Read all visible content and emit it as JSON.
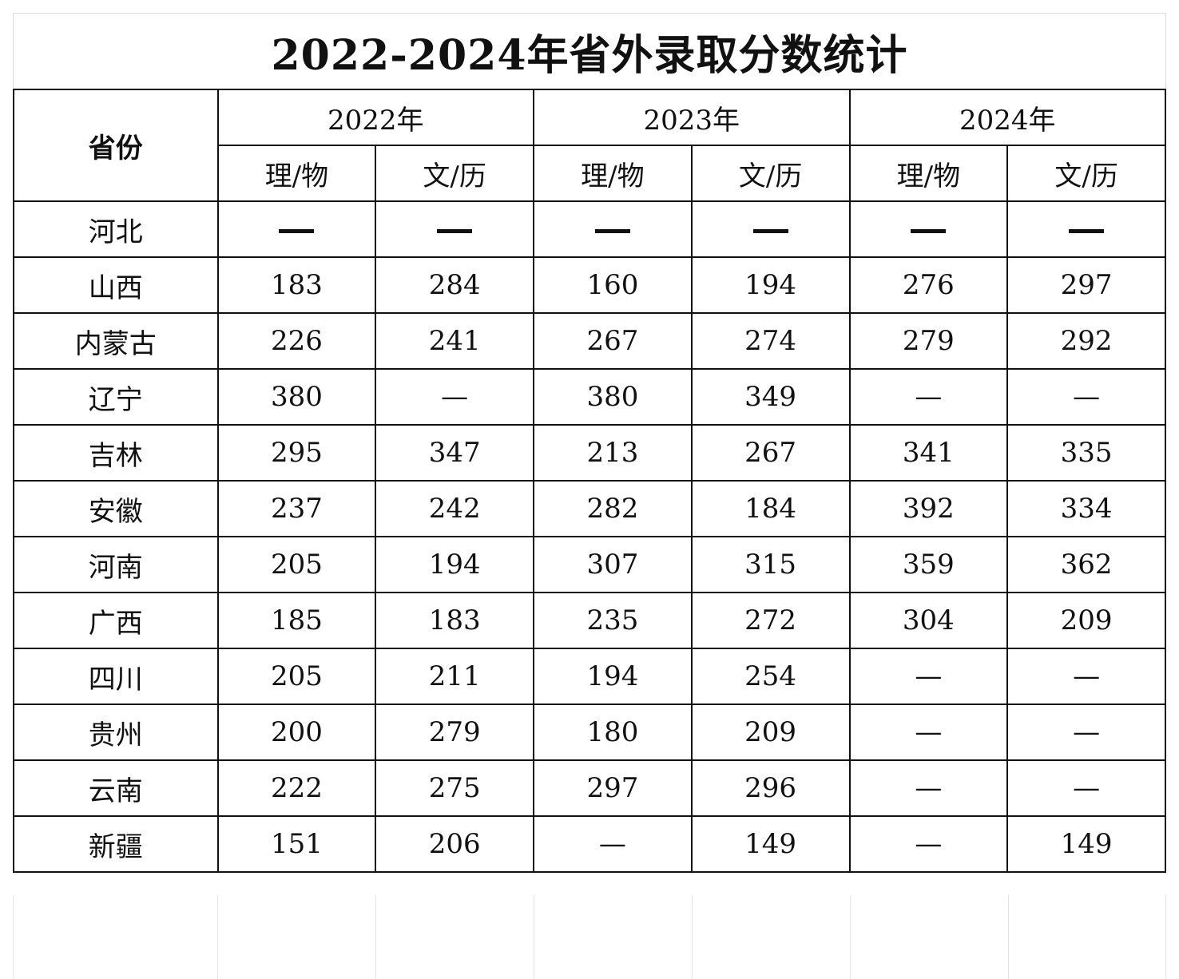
{
  "title": "2022-2024年省外录取分数统计",
  "header": {
    "province_label": "省份",
    "years": [
      "2022年",
      "2023年",
      "2024年"
    ],
    "subcategories": [
      "理/物",
      "文/历"
    ]
  },
  "rows": [
    {
      "province": "河北",
      "values": [
        "—",
        "—",
        "—",
        "—",
        "—",
        "—"
      ],
      "bold_dash": true
    },
    {
      "province": "山西",
      "values": [
        "183",
        "284",
        "160",
        "194",
        "276",
        "297"
      ]
    },
    {
      "province": "内蒙古",
      "values": [
        "226",
        "241",
        "267",
        "274",
        "279",
        "292"
      ]
    },
    {
      "province": "辽宁",
      "values": [
        "380",
        "—",
        "380",
        "349",
        "—",
        "—"
      ]
    },
    {
      "province": "吉林",
      "values": [
        "295",
        "347",
        "213",
        "267",
        "341",
        "335"
      ]
    },
    {
      "province": "安徽",
      "values": [
        "237",
        "242",
        "282",
        "184",
        "392",
        "334"
      ]
    },
    {
      "province": "河南",
      "values": [
        "205",
        "194",
        "307",
        "315",
        "359",
        "362"
      ]
    },
    {
      "province": "广西",
      "values": [
        "185",
        "183",
        "235",
        "272",
        "304",
        "209"
      ]
    },
    {
      "province": "四川",
      "values": [
        "205",
        "211",
        "194",
        "254",
        "—",
        "—"
      ]
    },
    {
      "province": "贵州",
      "values": [
        "200",
        "279",
        "180",
        "209",
        "—",
        "—"
      ]
    },
    {
      "province": "云南",
      "values": [
        "222",
        "275",
        "297",
        "296",
        "—",
        "—"
      ]
    },
    {
      "province": "新疆",
      "values": [
        "151",
        "206",
        "—",
        "149",
        "—",
        "149"
      ]
    }
  ]
}
